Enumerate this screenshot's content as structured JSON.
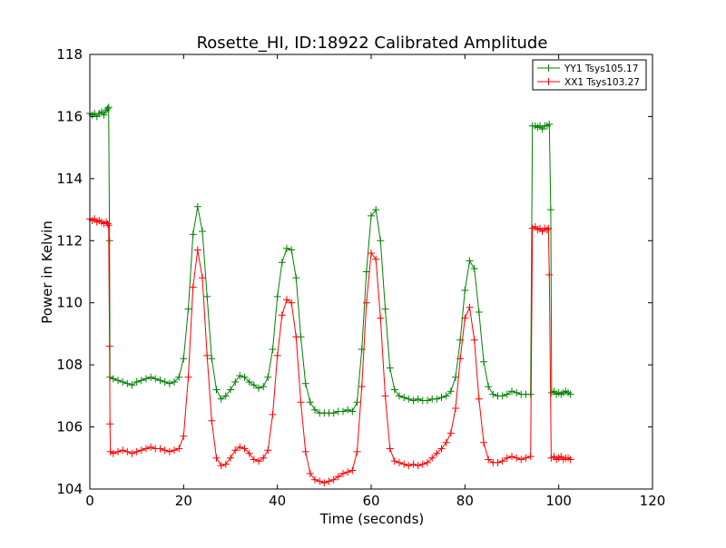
{
  "chart_data": {
    "type": "line",
    "title": "Rosette_HI, ID:18922 Calibrated Amplitude",
    "xlabel": "Time (seconds)",
    "ylabel": "Power in Kelvin",
    "xlim": [
      0,
      120
    ],
    "ylim": [
      104,
      118
    ],
    "xticks": [
      0,
      20,
      40,
      60,
      80,
      100,
      120
    ],
    "yticks": [
      104,
      106,
      108,
      110,
      112,
      114,
      116,
      118
    ],
    "grid": false,
    "legend_position": "top-right",
    "marker": "+",
    "series": [
      {
        "name": "YY1 Tsys105.17",
        "color": "#008000",
        "points": [
          [
            0.0,
            116.1
          ],
          [
            0.5,
            116.05
          ],
          [
            1.0,
            116.1
          ],
          [
            1.5,
            116.0
          ],
          [
            2.0,
            116.1
          ],
          [
            2.5,
            116.15
          ],
          [
            3.0,
            116.05
          ],
          [
            3.5,
            116.2
          ],
          [
            3.8,
            116.25
          ],
          [
            4.0,
            116.3
          ],
          [
            4.2,
            112.0
          ],
          [
            4.3,
            107.6
          ],
          [
            5,
            107.55
          ],
          [
            6,
            107.5
          ],
          [
            7,
            107.45
          ],
          [
            8,
            107.4
          ],
          [
            9,
            107.35
          ],
          [
            10,
            107.45
          ],
          [
            11,
            107.5
          ],
          [
            12,
            107.55
          ],
          [
            13,
            107.6
          ],
          [
            14,
            107.55
          ],
          [
            15,
            107.5
          ],
          [
            16,
            107.45
          ],
          [
            17,
            107.4
          ],
          [
            18,
            107.45
          ],
          [
            19,
            107.6
          ],
          [
            20,
            108.2
          ],
          [
            21,
            109.8
          ],
          [
            22,
            112.2
          ],
          [
            23,
            113.1
          ],
          [
            24,
            112.3
          ],
          [
            25,
            110.2
          ],
          [
            26,
            108.2
          ],
          [
            27,
            107.2
          ],
          [
            28,
            106.9
          ],
          [
            29,
            107.0
          ],
          [
            30,
            107.2
          ],
          [
            31,
            107.45
          ],
          [
            32,
            107.65
          ],
          [
            33,
            107.6
          ],
          [
            34,
            107.45
          ],
          [
            35,
            107.35
          ],
          [
            36,
            107.25
          ],
          [
            37,
            107.3
          ],
          [
            38,
            107.6
          ],
          [
            39,
            108.5
          ],
          [
            40,
            110.2
          ],
          [
            41,
            111.3
          ],
          [
            42,
            111.75
          ],
          [
            43,
            111.7
          ],
          [
            44,
            110.8
          ],
          [
            45,
            108.9
          ],
          [
            46,
            107.4
          ],
          [
            47,
            106.8
          ],
          [
            48,
            106.55
          ],
          [
            49,
            106.45
          ],
          [
            50,
            106.45
          ],
          [
            51,
            106.45
          ],
          [
            52,
            106.45
          ],
          [
            53,
            106.5
          ],
          [
            54,
            106.5
          ],
          [
            55,
            106.55
          ],
          [
            56,
            106.5
          ],
          [
            57,
            106.8
          ],
          [
            58,
            108.5
          ],
          [
            59,
            111.0
          ],
          [
            60,
            112.8
          ],
          [
            61,
            113.0
          ],
          [
            62,
            112.0
          ],
          [
            63,
            109.8
          ],
          [
            64,
            107.9
          ],
          [
            65,
            107.2
          ],
          [
            66,
            107.0
          ],
          [
            67,
            106.95
          ],
          [
            68,
            106.9
          ],
          [
            69,
            106.85
          ],
          [
            70,
            106.9
          ],
          [
            71,
            106.85
          ],
          [
            72,
            106.85
          ],
          [
            73,
            106.9
          ],
          [
            74,
            106.9
          ],
          [
            75,
            106.95
          ],
          [
            76,
            107.0
          ],
          [
            77,
            107.15
          ],
          [
            78,
            107.6
          ],
          [
            79,
            108.8
          ],
          [
            80,
            110.4
          ],
          [
            81,
            111.35
          ],
          [
            82,
            111.1
          ],
          [
            83,
            109.7
          ],
          [
            84,
            108.1
          ],
          [
            85,
            107.3
          ],
          [
            86,
            107.05
          ],
          [
            87,
            107.0
          ],
          [
            88,
            107.0
          ],
          [
            89,
            107.05
          ],
          [
            90,
            107.15
          ],
          [
            91,
            107.1
          ],
          [
            92,
            107.05
          ],
          [
            93,
            107.05
          ],
          [
            94,
            107.05
          ],
          [
            94.4,
            115.7
          ],
          [
            95,
            115.7
          ],
          [
            95.5,
            115.65
          ],
          [
            96,
            115.7
          ],
          [
            96.5,
            115.6
          ],
          [
            97,
            115.7
          ],
          [
            97.5,
            115.7
          ],
          [
            98,
            115.75
          ],
          [
            98.3,
            113.0
          ],
          [
            98.5,
            107.1
          ],
          [
            99,
            107.15
          ],
          [
            99.5,
            107.05
          ],
          [
            100,
            107.1
          ],
          [
            100.5,
            107.05
          ],
          [
            101,
            107.1
          ],
          [
            101.5,
            107.15
          ],
          [
            102,
            107.1
          ],
          [
            102.5,
            107.05
          ]
        ]
      },
      {
        "name": "XX1 Tsys103.27",
        "color": "#ff0000",
        "points": [
          [
            0.0,
            112.7
          ],
          [
            0.5,
            112.65
          ],
          [
            1.0,
            112.7
          ],
          [
            1.5,
            112.6
          ],
          [
            2.0,
            112.65
          ],
          [
            2.5,
            112.6
          ],
          [
            3.0,
            112.55
          ],
          [
            3.5,
            112.6
          ],
          [
            3.8,
            112.55
          ],
          [
            4.0,
            112.5
          ],
          [
            4.2,
            108.6
          ],
          [
            4.3,
            106.1
          ],
          [
            4.4,
            105.2
          ],
          [
            5,
            105.15
          ],
          [
            6,
            105.2
          ],
          [
            7,
            105.25
          ],
          [
            8,
            105.2
          ],
          [
            9,
            105.15
          ],
          [
            10,
            105.2
          ],
          [
            11,
            105.25
          ],
          [
            12,
            105.3
          ],
          [
            13,
            105.35
          ],
          [
            14,
            105.3
          ],
          [
            15,
            105.3
          ],
          [
            16,
            105.25
          ],
          [
            17,
            105.2
          ],
          [
            18,
            105.25
          ],
          [
            19,
            105.3
          ],
          [
            20,
            105.7
          ],
          [
            21,
            107.6
          ],
          [
            22,
            110.5
          ],
          [
            23,
            111.7
          ],
          [
            24,
            110.8
          ],
          [
            25,
            108.3
          ],
          [
            26,
            106.2
          ],
          [
            27,
            105.0
          ],
          [
            28,
            104.75
          ],
          [
            29,
            104.8
          ],
          [
            30,
            105.0
          ],
          [
            31,
            105.25
          ],
          [
            32,
            105.35
          ],
          [
            33,
            105.3
          ],
          [
            34,
            105.15
          ],
          [
            35,
            104.95
          ],
          [
            36,
            104.9
          ],
          [
            37,
            105.0
          ],
          [
            38,
            105.25
          ],
          [
            39,
            106.4
          ],
          [
            40,
            108.3
          ],
          [
            41,
            109.6
          ],
          [
            42,
            110.1
          ],
          [
            43,
            110.0
          ],
          [
            44,
            108.9
          ],
          [
            45,
            106.8
          ],
          [
            46,
            105.2
          ],
          [
            47,
            104.5
          ],
          [
            48,
            104.3
          ],
          [
            49,
            104.25
          ],
          [
            50,
            104.2
          ],
          [
            51,
            104.25
          ],
          [
            52,
            104.3
          ],
          [
            53,
            104.4
          ],
          [
            54,
            104.5
          ],
          [
            55,
            104.55
          ],
          [
            56,
            104.6
          ],
          [
            57,
            105.2
          ],
          [
            58,
            107.3
          ],
          [
            59,
            110.0
          ],
          [
            60,
            111.6
          ],
          [
            61,
            111.4
          ],
          [
            62,
            109.5
          ],
          [
            63,
            107.0
          ],
          [
            64,
            105.3
          ],
          [
            65,
            104.9
          ],
          [
            66,
            104.85
          ],
          [
            67,
            104.8
          ],
          [
            68,
            104.75
          ],
          [
            69,
            104.8
          ],
          [
            70,
            104.75
          ],
          [
            71,
            104.8
          ],
          [
            72,
            104.85
          ],
          [
            73,
            105.0
          ],
          [
            74,
            105.15
          ],
          [
            75,
            105.3
          ],
          [
            76,
            105.5
          ],
          [
            77,
            105.8
          ],
          [
            78,
            106.6
          ],
          [
            79,
            108.2
          ],
          [
            80,
            109.5
          ],
          [
            81,
            109.85
          ],
          [
            82,
            108.8
          ],
          [
            83,
            106.9
          ],
          [
            84,
            105.5
          ],
          [
            85,
            104.95
          ],
          [
            86,
            104.85
          ],
          [
            87,
            104.85
          ],
          [
            88,
            104.9
          ],
          [
            89,
            105.0
          ],
          [
            90,
            105.05
          ],
          [
            91,
            105.0
          ],
          [
            92,
            104.95
          ],
          [
            93,
            105.0
          ],
          [
            94,
            105.05
          ],
          [
            94.4,
            112.4
          ],
          [
            95,
            112.45
          ],
          [
            95.5,
            112.35
          ],
          [
            96,
            112.4
          ],
          [
            96.5,
            112.3
          ],
          [
            97,
            112.4
          ],
          [
            97.5,
            112.35
          ],
          [
            97.8,
            112.4
          ],
          [
            98.0,
            110.9
          ],
          [
            98.4,
            105.0
          ],
          [
            99,
            105.05
          ],
          [
            99.5,
            104.95
          ],
          [
            100,
            105.0
          ],
          [
            100.5,
            105.05
          ],
          [
            101,
            104.95
          ],
          [
            101.5,
            105.0
          ],
          [
            102,
            105.0
          ],
          [
            102.5,
            104.95
          ]
        ]
      }
    ]
  }
}
